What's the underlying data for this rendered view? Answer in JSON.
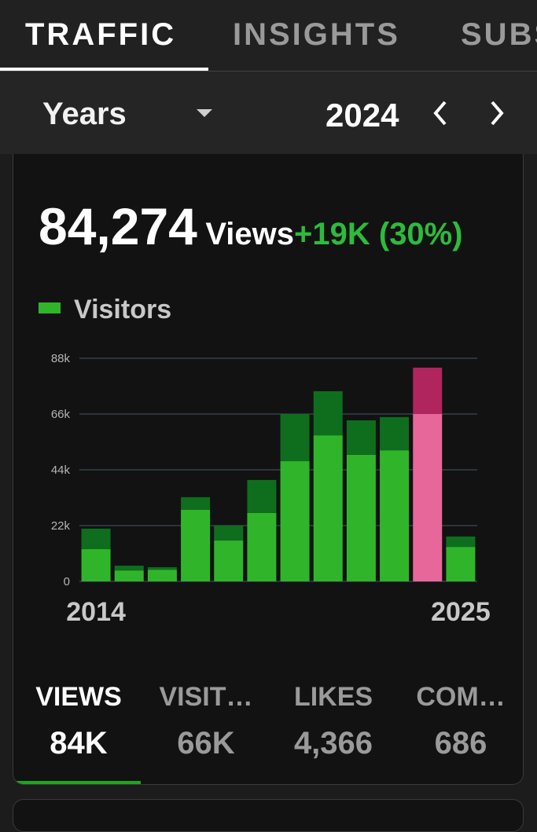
{
  "tabs": [
    "TRAFFIC",
    "INSIGHTS",
    "SUBSCRIBERS"
  ],
  "period": {
    "unit": "Years",
    "year": "2024"
  },
  "summary": {
    "total": "84,274",
    "unit": "Views",
    "change": "+19K (30%)"
  },
  "chart_data": {
    "type": "bar",
    "stacked": true,
    "categories": [
      "2014",
      null,
      null,
      null,
      null,
      null,
      null,
      null,
      null,
      null,
      null,
      "2025"
    ],
    "series": [
      {
        "name": "Visitors",
        "color": "#30b52a",
        "highlight_color": "#e8679a",
        "values": [
          12.7,
          4.3,
          4.6,
          28.2,
          16.1,
          27.0,
          47.4,
          57.6,
          49.9,
          51.7,
          66.0,
          13.6
        ]
      },
      {
        "color": "#0e6e1e",
        "highlight_color": "#b0255d",
        "values": [
          8.1,
          1.9,
          1.0,
          5.0,
          5.9,
          13.0,
          18.6,
          17.4,
          13.6,
          13.1,
          18.3,
          4.1
        ]
      }
    ],
    "highlight_index": 10,
    "ylim": [
      0,
      88
    ],
    "yticks": [
      0,
      {
        "value": 22,
        "label": "22k"
      },
      {
        "value": 44,
        "label": "44k"
      },
      {
        "value": 66,
        "label": "66k"
      },
      {
        "value": 88,
        "label": "88k"
      }
    ],
    "grid": true
  },
  "stats": [
    {
      "label": "VIEWS",
      "value": "84K"
    },
    {
      "label": "VISIT…",
      "value": "66K"
    },
    {
      "label": "LIKES",
      "value": "4,366"
    },
    {
      "label": "COM…",
      "value": "686"
    }
  ]
}
